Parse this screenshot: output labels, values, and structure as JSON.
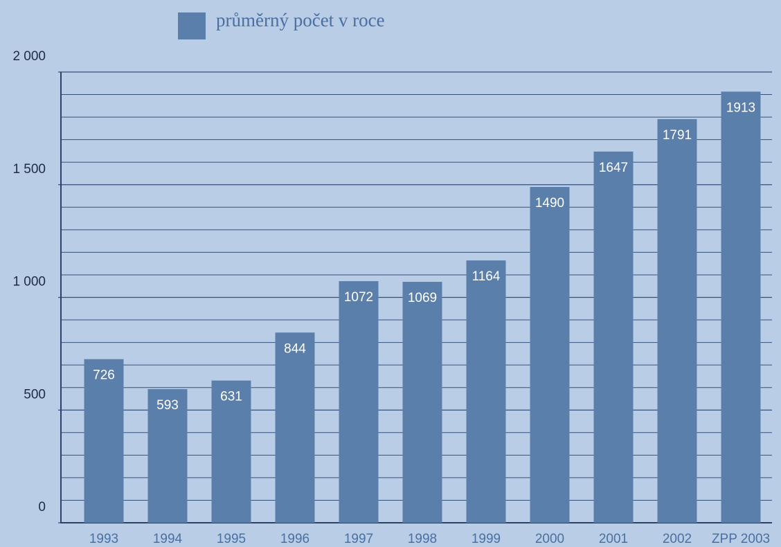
{
  "chart_data": {
    "type": "bar",
    "legend": "průměrný počet v roce",
    "categories": [
      "1993",
      "1994",
      "1995",
      "1996",
      "1997",
      "1998",
      "1999",
      "2000",
      "2001",
      "2002",
      "ZPP 2003"
    ],
    "values": [
      726,
      593,
      631,
      844,
      1072,
      1069,
      1164,
      1490,
      1647,
      1791,
      1913
    ],
    "color": "#5b7fab",
    "ylim": [
      0,
      2000
    ],
    "yticks": [
      0,
      500,
      {
        "value": 1000,
        "label": "1 000"
      },
      {
        "value": 1500,
        "label": "1 500"
      },
      {
        "value": 2000,
        "label": "2 000"
      }
    ],
    "minor_yticks": [
      100,
      200,
      300,
      400,
      600,
      700,
      800,
      900,
      1100,
      1200,
      1300,
      1400,
      1600,
      1700,
      1800,
      1900
    ],
    "grid": true
  }
}
